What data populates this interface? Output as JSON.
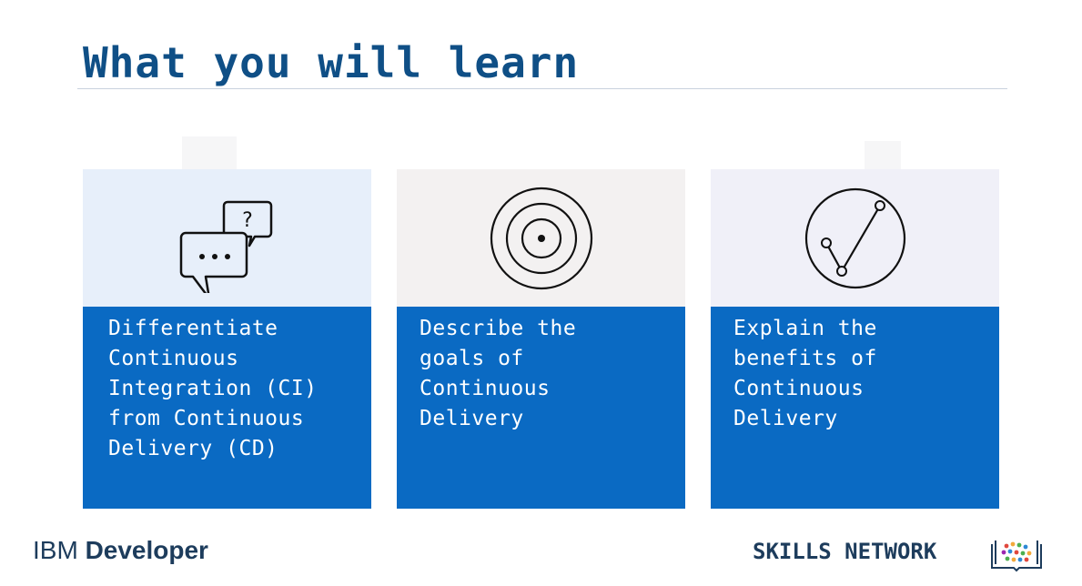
{
  "slide": {
    "title": "What you will learn"
  },
  "cards": [
    {
      "icon": "chat-bubbles-icon",
      "text": "Differentiate\nContinuous\nIntegration (CI)\nfrom Continuous\nDelivery (CD)"
    },
    {
      "icon": "target-icon",
      "text": "Describe the\ngoals of\nContinuous\nDelivery"
    },
    {
      "icon": "checkmark-circle-icon",
      "text": "Explain the\nbenefits of\nContinuous\nDelivery"
    }
  ],
  "footer": {
    "brand_light": "IBM",
    "brand_bold": "Developer",
    "skills_network": "SKILLS NETWORK"
  },
  "colors": {
    "title": "#0f4f86",
    "card_blue": "#0a6ac3",
    "footer_text": "#1d3c5c"
  }
}
